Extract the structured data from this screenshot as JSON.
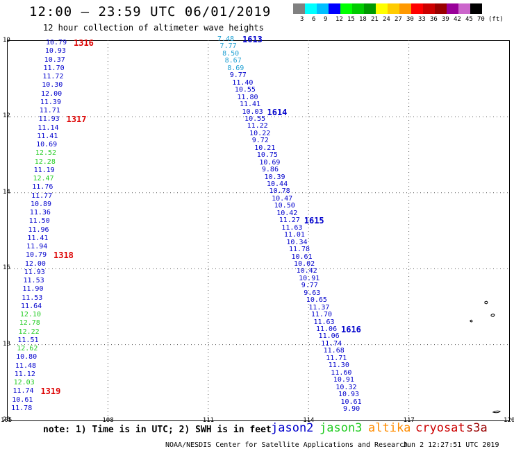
{
  "title": "12:00 — 23:59 UTC 06/01/2019",
  "subtitle": "12 hour collection of altimeter wave heights",
  "legend": {
    "colors": [
      "#808080",
      "#00ffff",
      "#00bfff",
      "#0000ff",
      "#00ff00",
      "#00cc00",
      "#009900",
      "#ffff00",
      "#ffcc00",
      "#ff9900",
      "#ff0000",
      "#cc0000",
      "#990000",
      "#990099",
      "#cc66cc",
      "#000000"
    ],
    "labels": [
      "3",
      "6",
      "9",
      "12",
      "15",
      "18",
      "21",
      "24",
      "27",
      "30",
      "33",
      "36",
      "39",
      "42",
      "45",
      "70",
      "(ft)"
    ]
  },
  "axes": {
    "x_ticks": [
      "105",
      "108",
      "111",
      "114",
      "117",
      "120"
    ],
    "y_ticks": [
      "10",
      "12",
      "14",
      "16",
      "18",
      "20"
    ]
  },
  "colors": {
    "jason2": "#0000cc",
    "jason3": "#22cc22",
    "altika": "#ff8c00",
    "cryosat": "#cc0000",
    "s3a": "#990000",
    "light_blue": "#1e9fd2",
    "pass_label_left": "#dd0000",
    "pass_label_right": "#0000cc"
  },
  "track_left": {
    "values": [
      "10.79",
      "10.93",
      "10.37",
      "11.70",
      "11.72",
      "10.30",
      "12.00",
      "11.39",
      "11.71",
      "11.93",
      "11.14",
      "11.41",
      "10.69",
      "12.52",
      "12.28",
      "11.19",
      "12.47",
      "11.76",
      "11.77",
      "10.89",
      "11.36",
      "11.50",
      "11.96",
      "11.41",
      "11.94",
      "10.79",
      "12.00",
      "11.93",
      "11.53",
      "11.90",
      "11.53",
      "11.64",
      "12.10",
      "12.78",
      "12.22",
      "11.51",
      "12.62",
      "10.80",
      "11.48",
      "11.12",
      "12.03",
      "11.74",
      "10.61",
      "11.78"
    ],
    "sat": [
      "j2",
      "j2",
      "j2",
      "j2",
      "j2",
      "j2",
      "j2",
      "j2",
      "j2",
      "j2",
      "j2",
      "j2",
      "j2",
      "j3",
      "j3",
      "j2",
      "j3",
      "j2",
      "j2",
      "j2",
      "j2",
      "j2",
      "j2",
      "j2",
      "j2",
      "j2",
      "j2",
      "j2",
      "j2",
      "j2",
      "j2",
      "j2",
      "j3",
      "j3",
      "j3",
      "j2",
      "j3",
      "j2",
      "j2",
      "j2",
      "j3",
      "j2",
      "j2",
      "j2"
    ],
    "passes": [
      {
        "label": "1316",
        "row": 0
      },
      {
        "label": "1317",
        "row": 9
      },
      {
        "label": "1318",
        "row": 25
      },
      {
        "label": "1319",
        "row": 41
      }
    ]
  },
  "track_right": {
    "values": [
      "7.48",
      "7.77",
      "8.50",
      "8.67",
      "8.69",
      "9.77",
      "11.40",
      "10.55",
      "11.80",
      "11.41",
      "10.03",
      "10.55",
      "11.22",
      "10.22",
      "9.72",
      "10.21",
      "10.75",
      "10.69",
      "9.86",
      "10.39",
      "10.44",
      "10.78",
      "10.47",
      "10.50",
      "10.42",
      "11.27",
      "11.63",
      "11.01",
      "10.34",
      "11.78",
      "10.61",
      "10.02",
      "10.42",
      "10.91",
      "9.77",
      "9.63",
      "10.65",
      "11.37",
      "11.70",
      "11.63",
      "11.06",
      "11.06",
      "11.74",
      "11.68",
      "11.71",
      "11.30",
      "11.60",
      "10.91",
      "10.32",
      "10.93",
      "10.61",
      "9.90"
    ],
    "sat": [
      "lb",
      "lb",
      "lb",
      "lb",
      "lb",
      "j2",
      "j2",
      "j2",
      "j2",
      "j2",
      "j2",
      "j2",
      "j2",
      "j2",
      "j2",
      "j2",
      "j2",
      "j2",
      "j2",
      "j2",
      "j2",
      "j2",
      "j2",
      "j2",
      "j2",
      "j2",
      "j2",
      "j2",
      "j2",
      "j2",
      "j2",
      "j2",
      "j2",
      "j2",
      "j2",
      "j2",
      "j2",
      "j2",
      "j2",
      "j2",
      "j2",
      "j2",
      "j2",
      "j2",
      "j2",
      "j2",
      "j2",
      "j2",
      "j2",
      "j2",
      "j2",
      "j2"
    ],
    "passes": [
      {
        "label": "1613",
        "row": 0
      },
      {
        "label": "1614",
        "row": 10
      },
      {
        "label": "1615",
        "row": 25
      },
      {
        "label": "1616",
        "row": 40
      }
    ]
  },
  "note": "note: 1) Time is in UTC; 2) SWH is in feet",
  "satellites": [
    {
      "name": "jason2",
      "key": "jason2"
    },
    {
      "name": "jason3",
      "key": "jason3"
    },
    {
      "name": "altika",
      "key": "altika"
    },
    {
      "name": "cryosat",
      "key": "cryosat"
    },
    {
      "name": "s3a",
      "key": "s3a"
    }
  ],
  "credit": "NOAA/NESDIS Center for Satellite Applications and Research",
  "datestamp": "Jun  2 12:27:51 UTC 2019"
}
